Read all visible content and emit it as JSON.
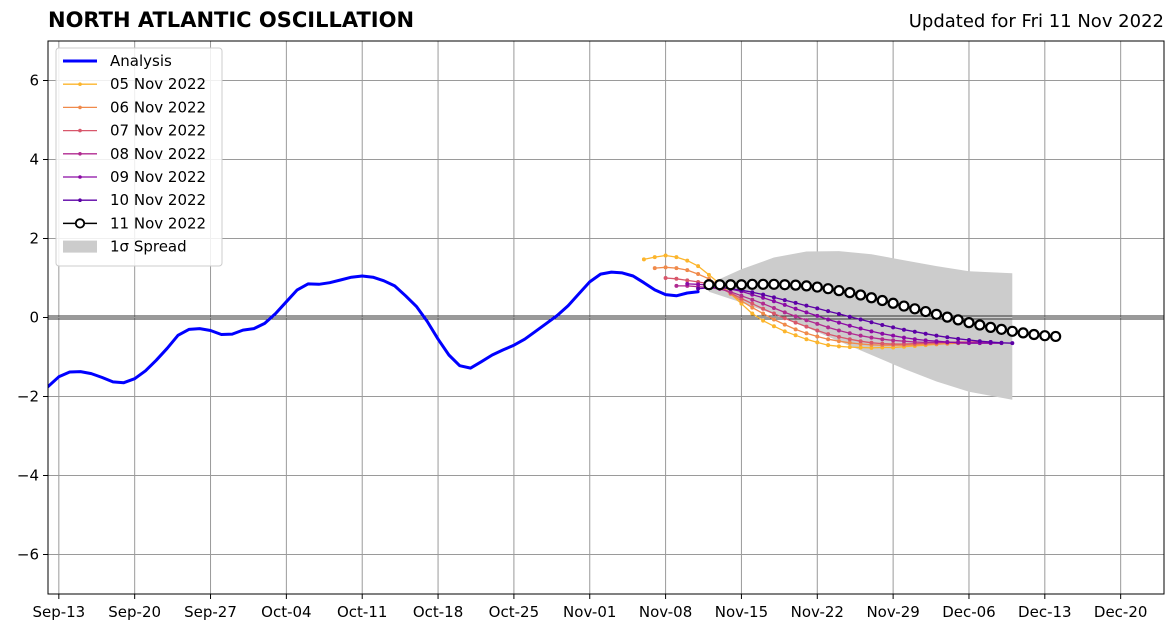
{
  "chart_data": {
    "type": "line",
    "title": "NORTH ATLANTIC OSCILLATION",
    "subtitle": "Updated for Fri 11 Nov 2022",
    "xlabel": "",
    "ylabel": "",
    "x_axis": {
      "type": "date",
      "start": "2022-09-12",
      "end": "2022-12-24",
      "ticks": [
        "2022-09-13",
        "2022-09-20",
        "2022-09-27",
        "2022-10-04",
        "2022-10-11",
        "2022-10-18",
        "2022-10-25",
        "2022-11-01",
        "2022-11-08",
        "2022-11-15",
        "2022-11-22",
        "2022-11-29",
        "2022-12-06",
        "2022-12-13",
        "2022-12-20"
      ],
      "tick_labels": [
        "Sep-13",
        "Sep-20",
        "Sep-27",
        "Oct-04",
        "Oct-11",
        "Oct-18",
        "Oct-25",
        "Nov-01",
        "Nov-08",
        "Nov-15",
        "Nov-22",
        "Nov-29",
        "Dec-06",
        "Dec-13",
        "Dec-20"
      ]
    },
    "ylim": [
      -7,
      7
    ],
    "y_ticks": [
      -6,
      -4,
      -2,
      0,
      2,
      4,
      6
    ],
    "y_tick_labels": [
      "−6",
      "−4",
      "−2",
      "0",
      "2",
      "4",
      "6"
    ],
    "grid": true,
    "legend_position": "top-left",
    "legend": [
      {
        "label": "Analysis",
        "kind": "line",
        "color": "#0000ff"
      },
      {
        "label": "05 Nov 2022",
        "kind": "dotline",
        "color": "#fcb52c"
      },
      {
        "label": "06 Nov 2022",
        "kind": "dotline",
        "color": "#f08a4b"
      },
      {
        "label": "07 Nov 2022",
        "kind": "dotline",
        "color": "#d8576b"
      },
      {
        "label": "08 Nov 2022",
        "kind": "dotline",
        "color": "#b12a90"
      },
      {
        "label": "09 Nov 2022",
        "kind": "dotline",
        "color": "#8b0aa5"
      },
      {
        "label": "10 Nov 2022",
        "kind": "dotline",
        "color": "#5c01a6"
      },
      {
        "label": "11 Nov 2022",
        "kind": "circle",
        "color": "#000000"
      },
      {
        "label": "1σ Spread",
        "kind": "patch",
        "color": "#cccccc"
      }
    ],
    "analysis": {
      "start": "2022-09-12",
      "values": [
        -1.75,
        -1.5,
        -1.38,
        -1.37,
        -1.42,
        -1.52,
        -1.63,
        -1.65,
        -1.55,
        -1.35,
        -1.08,
        -0.78,
        -0.45,
        -0.3,
        -0.28,
        -0.33,
        -0.43,
        -0.42,
        -0.32,
        -0.28,
        -0.15,
        0.1,
        0.4,
        0.7,
        0.85,
        0.84,
        0.88,
        0.95,
        1.02,
        1.05,
        1.02,
        0.93,
        0.8,
        0.55,
        0.28,
        -0.1,
        -0.55,
        -0.95,
        -1.22,
        -1.28,
        -1.12,
        -0.95,
        -0.82,
        -0.7,
        -0.55,
        -0.35,
        -0.15,
        0.05,
        0.3,
        0.6,
        0.9,
        1.1,
        1.15,
        1.13,
        1.05,
        0.88,
        0.7,
        0.58,
        0.55,
        0.62,
        0.65
      ]
    },
    "forecasts": [
      {
        "name": "05 Nov 2022",
        "color": "#fcb52c",
        "start": "2022-11-06",
        "values": [
          1.47,
          1.53,
          1.57,
          1.53,
          1.44,
          1.3,
          1.08,
          0.85,
          0.6,
          0.35,
          0.1,
          -0.08,
          -0.22,
          -0.35,
          -0.45,
          -0.55,
          -0.63,
          -0.7,
          -0.73,
          -0.75,
          -0.76,
          -0.77,
          -0.76,
          -0.76,
          -0.74,
          -0.72,
          -0.7,
          -0.68,
          -0.66,
          -0.65
        ]
      },
      {
        "name": "06 Nov 2022",
        "color": "#f08a4b",
        "start": "2022-11-07",
        "values": [
          1.25,
          1.27,
          1.25,
          1.2,
          1.1,
          0.98,
          0.8,
          0.6,
          0.42,
          0.25,
          0.1,
          -0.05,
          -0.18,
          -0.3,
          -0.4,
          -0.48,
          -0.55,
          -0.6,
          -0.64,
          -0.67,
          -0.69,
          -0.7,
          -0.7,
          -0.7,
          -0.69,
          -0.68,
          -0.67,
          -0.66,
          -0.65,
          -0.64
        ]
      },
      {
        "name": "07 Nov 2022",
        "color": "#d8576b",
        "start": "2022-11-08",
        "values": [
          1.0,
          0.98,
          0.94,
          0.9,
          0.85,
          0.75,
          0.62,
          0.48,
          0.35,
          0.22,
          0.1,
          -0.02,
          -0.13,
          -0.23,
          -0.33,
          -0.42,
          -0.49,
          -0.55,
          -0.6,
          -0.64,
          -0.66,
          -0.67,
          -0.67,
          -0.66,
          -0.65,
          -0.64,
          -0.63,
          -0.62,
          -0.62,
          -0.61
        ]
      },
      {
        "name": "08 Nov 2022",
        "color": "#b12a90",
        "start": "2022-11-09",
        "values": [
          0.8,
          0.8,
          0.78,
          0.76,
          0.72,
          0.65,
          0.55,
          0.45,
          0.35,
          0.24,
          0.13,
          0.03,
          -0.07,
          -0.16,
          -0.25,
          -0.33,
          -0.4,
          -0.46,
          -0.51,
          -0.55,
          -0.58,
          -0.6,
          -0.62,
          -0.63,
          -0.63,
          -0.63,
          -0.63,
          -0.63,
          -0.62,
          -0.62
        ]
      },
      {
        "name": "09 Nov 2022",
        "color": "#8b0aa5",
        "start": "2022-11-10",
        "values": [
          0.85,
          0.84,
          0.82,
          0.78,
          0.72,
          0.66,
          0.58,
          0.5,
          0.41,
          0.32,
          0.22,
          0.13,
          0.04,
          -0.05,
          -0.13,
          -0.21,
          -0.28,
          -0.35,
          -0.41,
          -0.46,
          -0.51,
          -0.55,
          -0.58,
          -0.6,
          -0.62,
          -0.64,
          -0.65,
          -0.65,
          -0.65,
          -0.65
        ]
      },
      {
        "name": "10 Nov 2022",
        "color": "#5c01a6",
        "start": "2022-11-11",
        "values": [
          0.73,
          0.75,
          0.76,
          0.73,
          0.69,
          0.64,
          0.58,
          0.51,
          0.44,
          0.37,
          0.3,
          0.23,
          0.16,
          0.09,
          0.02,
          -0.05,
          -0.12,
          -0.19,
          -0.25,
          -0.31,
          -0.36,
          -0.41,
          -0.46,
          -0.5,
          -0.54,
          -0.57,
          -0.6,
          -0.62,
          -0.64,
          -0.65
        ]
      },
      {
        "name": "11 Nov 2022",
        "color": "#000000",
        "start": "2022-11-12",
        "values": [
          0.83,
          0.83,
          0.83,
          0.83,
          0.84,
          0.84,
          0.84,
          0.83,
          0.82,
          0.8,
          0.77,
          0.73,
          0.68,
          0.63,
          0.57,
          0.5,
          0.43,
          0.36,
          0.29,
          0.22,
          0.15,
          0.08,
          0.01,
          -0.06,
          -0.13,
          -0.19,
          -0.25,
          -0.3,
          -0.35,
          -0.39,
          -0.43,
          -0.46,
          -0.48
        ]
      }
    ],
    "spread": {
      "label": "1σ Spread",
      "color": "#cccccc",
      "x": [
        "2022-11-12",
        "2022-11-15",
        "2022-11-18",
        "2022-11-21",
        "2022-11-24",
        "2022-11-27",
        "2022-11-30",
        "2022-12-03",
        "2022-12-06",
        "2022-12-10"
      ],
      "upper": [
        0.85,
        1.22,
        1.52,
        1.67,
        1.68,
        1.6,
        1.45,
        1.3,
        1.17,
        1.12
      ],
      "lower": [
        0.65,
        0.38,
        0.08,
        -0.25,
        -0.6,
        -0.95,
        -1.3,
        -1.62,
        -1.88,
        -2.08
      ]
    }
  }
}
